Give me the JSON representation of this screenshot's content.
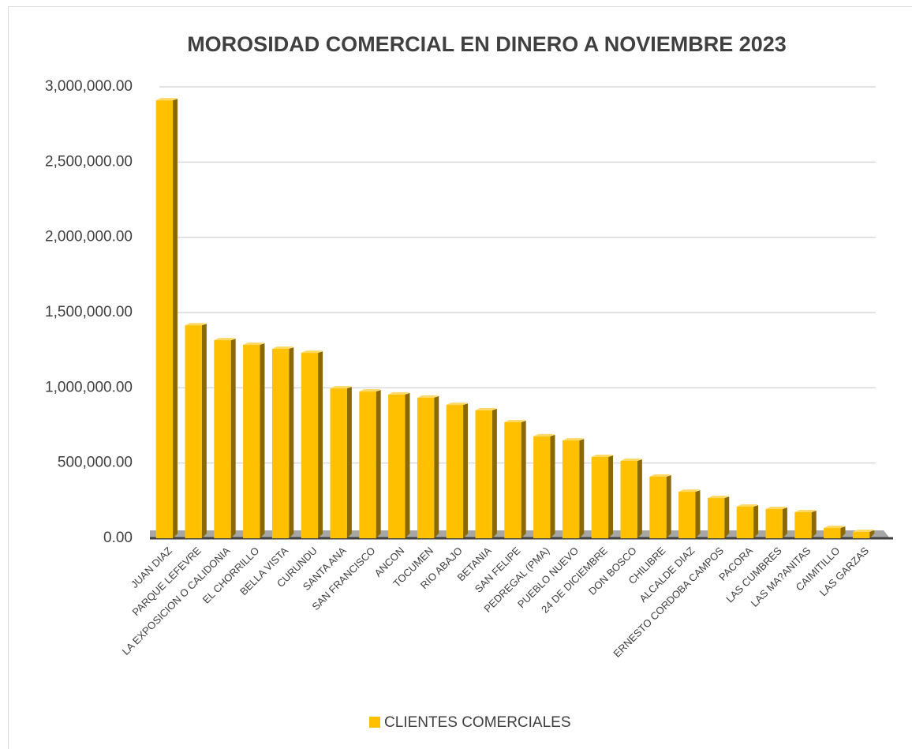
{
  "chart_data": {
    "type": "bar3d",
    "title": "MOROSIDAD COMERCIAL EN DINERO A NOVIEMBRE 2023",
    "categories": [
      "JUAN DIAZ",
      "PARQUE LEFEVRE",
      "LA EXPOSICION O CALIDONIA",
      "EL CHORRILLO",
      "BELLA VISTA",
      "CURUNDU",
      "SANTA ANA",
      "SAN FRANCISCO",
      "ANCON",
      "TOCUMEN",
      "RIO ABAJO",
      "BETANIA",
      "SAN FELIPE",
      "PEDREGAL (PMA)",
      "PUEBLO NUEVO",
      "24 DE DICIEMBRE",
      "DON BOSCO",
      "CHILIBRE",
      "ALCALDE DIAZ",
      "ERNESTO CORDOBA CAMPOS",
      "PACORA",
      "LAS CUMBRES",
      "LAS MA?ANITAS",
      "CAIMITILLO",
      "LAS GARZAS"
    ],
    "series": [
      {
        "name": "CLIENTES COMERCIALES",
        "color": "#FFC000",
        "values": [
          2910000,
          1415000,
          1316000,
          1285000,
          1259000,
          1232000,
          996000,
          975000,
          955000,
          934000,
          886000,
          850000,
          771000,
          677000,
          650000,
          540000,
          514000,
          409000,
          309000,
          267000,
          210000,
          194000,
          173000,
          68000,
          42000
        ]
      }
    ],
    "ylim": [
      0,
      3000000
    ],
    "yticks": [
      {
        "value": 0,
        "label": "0.00"
      },
      {
        "value": 500000,
        "label": "500,000.00"
      },
      {
        "value": 1000000,
        "label": "1,000,000.00"
      },
      {
        "value": 1500000,
        "label": "1,500,000.00"
      },
      {
        "value": 2000000,
        "label": "2,000,000.00"
      },
      {
        "value": 2500000,
        "label": "2,500,000.00"
      },
      {
        "value": 3000000,
        "label": "3,000,000.00"
      }
    ],
    "grid": true,
    "legend": "bottom"
  }
}
